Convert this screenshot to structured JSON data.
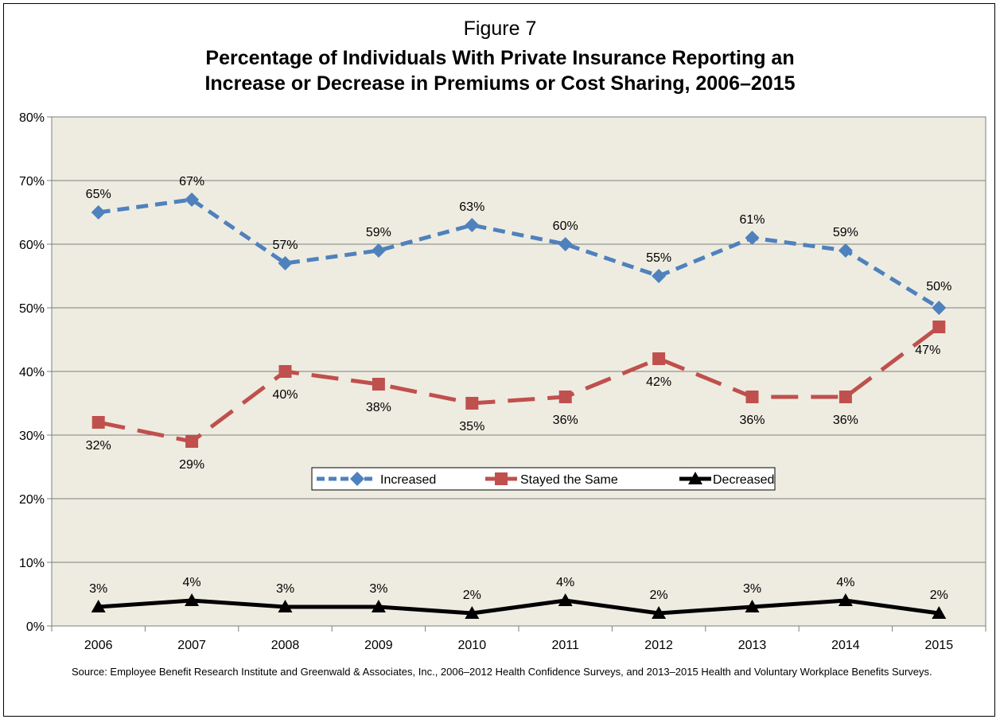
{
  "figure_label": "Figure 7",
  "title_line1": "Percentage of Individuals With Private Insurance Reporting an",
  "title_line2": "Increase or Decrease in Premiums or Cost Sharing, 2006–2015",
  "source": "Source: Employee Benefit Research Institute and Greenwald & Associates, Inc., 2006–2012 Health Confidence Surveys, and 2013–2015 Health and Voluntary Workplace Benefits Surveys.",
  "colors": {
    "plot_bg": "#EEECE1",
    "increased": "#4F81BD",
    "stayed": "#C0504D",
    "decreased": "#000000"
  },
  "chart_data": {
    "type": "line",
    "categories": [
      "2006",
      "2007",
      "2008",
      "2009",
      "2010",
      "2011",
      "2012",
      "2013",
      "2014",
      "2015"
    ],
    "ylim": [
      0,
      80
    ],
    "yticks": [
      "0%",
      "10%",
      "20%",
      "30%",
      "40%",
      "50%",
      "60%",
      "70%",
      "80%"
    ],
    "legend_position": "center",
    "series": [
      {
        "name": "Increased",
        "values": [
          65,
          67,
          57,
          59,
          63,
          60,
          55,
          61,
          59,
          50
        ],
        "labels": [
          "65%",
          "67%",
          "57%",
          "59%",
          "63%",
          "60%",
          "55%",
          "61%",
          "59%",
          "50%"
        ],
        "line": "dashed",
        "marker": "diamond"
      },
      {
        "name": "Stayed the Same",
        "values": [
          32,
          29,
          40,
          38,
          35,
          36,
          42,
          36,
          36,
          47
        ],
        "labels": [
          "32%",
          "29%",
          "40%",
          "38%",
          "35%",
          "36%",
          "42%",
          "36%",
          "36%",
          "47%"
        ],
        "line": "long-dashed",
        "marker": "square"
      },
      {
        "name": "Decreased",
        "values": [
          3,
          4,
          3,
          3,
          2,
          4,
          2,
          3,
          4,
          2
        ],
        "labels": [
          "3%",
          "4%",
          "3%",
          "3%",
          "2%",
          "4%",
          "2%",
          "3%",
          "4%",
          "2%"
        ],
        "line": "solid",
        "marker": "triangle"
      }
    ]
  }
}
